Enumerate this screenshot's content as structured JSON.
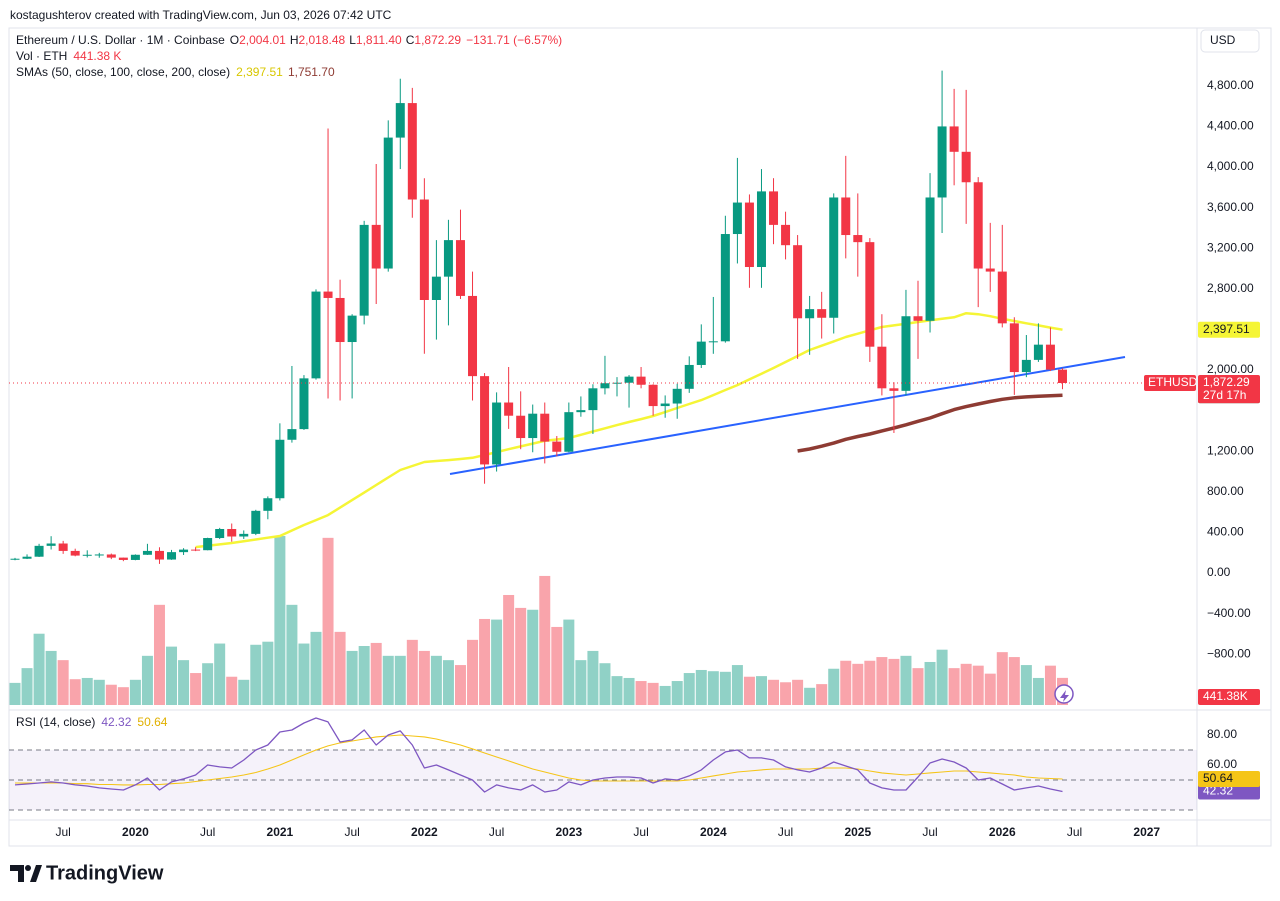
{
  "watermark": "kostagushterov created with TradingView.com, Jun 03, 2026 07:42 UTC",
  "currency": "USD",
  "brand": "TradingView",
  "chart_data": [
    {
      "type": "candlestick",
      "title": "Ethereum / U.S. Dollar · 1M · Coinbase",
      "legend": [
        {
          "key": "O",
          "value": "2,004.01"
        },
        {
          "key": "H",
          "value": "2,018.48"
        },
        {
          "key": "L",
          "value": "1,811.40"
        },
        {
          "key": "C",
          "value": "1,872.29"
        }
      ],
      "change_label": "−131.71 (−6.57%)",
      "symbol": "ETHUSD",
      "close_label": "1,872.29",
      "countdown": "27d 17h",
      "indicator_title": "SMAs (50, close, 100, close, 200, close)",
      "up_color": "#089981",
      "down_color": "#f23645",
      "categories": [
        null,
        null,
        null,
        null,
        "Jul",
        null,
        null,
        null,
        null,
        null,
        "2020",
        null,
        null,
        null,
        null,
        null,
        "Jul",
        null,
        null,
        null,
        null,
        null,
        "2021",
        null,
        null,
        null,
        null,
        null,
        "Jul",
        null,
        null,
        null,
        null,
        null,
        "2022",
        null,
        null,
        null,
        null,
        null,
        "Jul",
        null,
        null,
        null,
        null,
        null,
        "2023",
        null,
        null,
        null,
        null,
        null,
        "Jul",
        null,
        null,
        null,
        null,
        null,
        "2024",
        null,
        null,
        null,
        null,
        null,
        "Jul",
        null,
        null,
        null,
        null,
        null,
        "2025",
        null,
        null,
        null,
        null,
        null,
        "Jul",
        null,
        null,
        null,
        null,
        null,
        "2026",
        null,
        null,
        null,
        null,
        null
      ],
      "open": [
        136,
        141,
        161,
        268,
        291,
        218,
        172,
        180,
        183,
        152,
        129,
        180,
        218,
        133,
        206,
        231,
        225,
        345,
        434,
        360,
        386,
        613,
        737,
        1313,
        1418,
        1918,
        2773,
        2710,
        2276,
        2536,
        3430,
        3000,
        4290,
        4630,
        3680,
        2690,
        2920,
        3280,
        2730,
        1940,
        1070,
        1680,
        1550,
        1330,
        1570,
        1295,
        1195,
        1585,
        1605,
        1820,
        1870,
        1875,
        1935,
        1855,
        1645,
        1670,
        1815,
        2050,
        2280,
        2283,
        3340,
        3650,
        3015,
        3760,
        3430,
        3230,
        2510,
        2600,
        2515,
        3700,
        3330,
        3260,
        2230,
        1820,
        1795,
        2530,
        2485,
        3700,
        4400,
        4150,
        3850,
        3000,
        2970,
        2460,
        1980,
        2100,
        2250,
        2004.01
      ],
      "high": [
        149,
        184,
        288,
        363,
        317,
        240,
        224,
        199,
        192,
        153,
        184,
        288,
        254,
        228,
        245,
        255,
        348,
        445,
        488,
        420,
        623,
        755,
        1475,
        2040,
        1950,
        2795,
        4380,
        2890,
        2550,
        3470,
        4030,
        4460,
        4870,
        4780,
        3890,
        3280,
        3480,
        3580,
        2970,
        1970,
        1780,
        2030,
        1790,
        1660,
        1680,
        1350,
        1680,
        1740,
        1860,
        2140,
        1930,
        1950,
        2030,
        1860,
        1750,
        1865,
        2135,
        2450,
        2720,
        3520,
        4090,
        3730,
        3980,
        3890,
        3560,
        3330,
        2730,
        2770,
        3740,
        4110,
        3740,
        3300,
        2550,
        1880,
        2790,
        2880,
        3940,
        4950,
        4770,
        4760,
        3900,
        3450,
        3430,
        2520,
        2345,
        2460,
        2420,
        2018.48
      ],
      "low": [
        126,
        138,
        158,
        232,
        189,
        165,
        153,
        151,
        137,
        117,
        126,
        178,
        90,
        130,
        178,
        216,
        224,
        335,
        309,
        336,
        374,
        530,
        715,
        1285,
        1410,
        1905,
        1720,
        1700,
        1720,
        2450,
        2650,
        2970,
        3980,
        3500,
        2160,
        2300,
        2440,
        2700,
        1700,
        880,
        1000,
        1420,
        1220,
        1190,
        1080,
        1150,
        1190,
        1540,
        1370,
        1760,
        1740,
        1630,
        1820,
        1550,
        1530,
        1520,
        1775,
        2020,
        2160,
        2270,
        3050,
        2810,
        2810,
        3240,
        3090,
        2110,
        2150,
        2310,
        2360,
        3100,
        2920,
        2080,
        1750,
        1380,
        1750,
        2110,
        2370,
        3350,
        3820,
        3440,
        2620,
        2770,
        2420,
        1755,
        1930,
        2080,
        1990,
        1811.4
      ],
      "close": [
        141,
        161,
        268,
        291,
        218,
        172,
        180,
        183,
        152,
        129,
        180,
        218,
        133,
        206,
        231,
        225,
        345,
        434,
        360,
        386,
        613,
        737,
        1313,
        1418,
        1918,
        2773,
        2710,
        2276,
        2536,
        3430,
        3000,
        4290,
        4630,
        3680,
        2690,
        2920,
        3280,
        2730,
        1940,
        1070,
        1680,
        1550,
        1330,
        1570,
        1295,
        1195,
        1585,
        1605,
        1820,
        1870,
        1875,
        1935,
        1855,
        1645,
        1670,
        1815,
        2050,
        2280,
        2283,
        3340,
        3650,
        3015,
        3760,
        3430,
        3230,
        2510,
        2600,
        2515,
        3700,
        3330,
        3260,
        2230,
        1820,
        1795,
        2530,
        2485,
        3700,
        4400,
        4150,
        3850,
        3000,
        2970,
        2460,
        1980,
        2100,
        2250,
        2004.01,
        1872.29
      ],
      "series": [
        {
          "color": "#f5f536",
          "value_label": "2,397.51",
          "values": [
            null,
            null,
            null,
            null,
            null,
            null,
            null,
            null,
            null,
            null,
            null,
            null,
            null,
            null,
            null,
            256,
            269,
            282,
            296,
            313,
            330,
            348,
            365,
            419,
            473,
            522,
            571,
            645,
            719,
            793,
            867,
            941,
            1015,
            1055,
            1094,
            1104,
            1113,
            1124,
            1135,
            1163,
            1192,
            1220,
            1248,
            1275,
            1303,
            1316,
            1330,
            1362,
            1394,
            1426,
            1458,
            1488,
            1517,
            1547,
            1586,
            1626,
            1665,
            1704,
            1753,
            1803,
            1852,
            1908,
            1964,
            2020,
            2079,
            2138,
            2197,
            2240,
            2282,
            2325,
            2358,
            2391,
            2424,
            2440,
            2457,
            2473,
            2489,
            2505,
            2520,
            2560,
            2550,
            2530,
            2505,
            2483,
            2460,
            2440,
            2418,
            2397.51
          ]
        },
        {
          "color": "#8e3b33",
          "value_label": "1,751.70",
          "values": [
            null,
            null,
            null,
            null,
            null,
            null,
            null,
            null,
            null,
            null,
            null,
            null,
            null,
            null,
            null,
            null,
            null,
            null,
            null,
            null,
            null,
            null,
            null,
            null,
            null,
            null,
            null,
            null,
            null,
            null,
            null,
            null,
            null,
            null,
            null,
            null,
            null,
            null,
            null,
            null,
            null,
            null,
            null,
            null,
            null,
            null,
            null,
            null,
            null,
            null,
            null,
            null,
            null,
            null,
            null,
            null,
            null,
            null,
            null,
            null,
            null,
            null,
            null,
            null,
            null,
            1202,
            1222,
            1250,
            1280,
            1318,
            1345,
            1370,
            1400,
            1429,
            1460,
            1495,
            1527,
            1570,
            1610,
            1640,
            1665,
            1690,
            1712,
            1726,
            1735,
            1742,
            1747,
            1751.7
          ]
        }
      ],
      "ylim": [
        -1300,
        5350
      ],
      "yticks": [
        {
          "value": 4800,
          "label": "4,800.00"
        },
        {
          "value": 4400,
          "label": "4,400.00"
        },
        {
          "value": 4000,
          "label": "4,000.00"
        },
        {
          "value": 3600,
          "label": "3,600.00"
        },
        {
          "value": 3200,
          "label": "3,200.00"
        },
        {
          "value": 2800,
          "label": "2,800.00"
        },
        {
          "value": 2000,
          "label": "2,000.00"
        },
        {
          "value": 1200,
          "label": "1,200.00"
        },
        {
          "value": 800,
          "label": "800.00"
        },
        {
          "value": 400,
          "label": "400.00"
        },
        {
          "value": 0,
          "label": "0.00"
        },
        {
          "value": -400,
          "label": "−400.00"
        },
        {
          "value": -800,
          "label": "−800.00"
        }
      ],
      "after_ticks": [
        "Jul",
        "2027"
      ]
    },
    {
      "type": "bar",
      "title": "Vol · ETH",
      "legend_value": "441.38 K",
      "value_label": "441.38K",
      "up_color": "#089981",
      "down_color": "#f23645",
      "values": [
        360,
        600,
        1160,
        880,
        730,
        420,
        440,
        410,
        330,
        290,
        410,
        800,
        1630,
        950,
        730,
        520,
        680,
        1000,
        460,
        410,
        980,
        1030,
        2750,
        1630,
        1000,
        1190,
        2720,
        1190,
        880,
        960,
        1010,
        800,
        800,
        1060,
        880,
        800,
        730,
        650,
        1060,
        1400,
        1390,
        1790,
        1580,
        1550,
        2100,
        1270,
        1390,
        730,
        880,
        680,
        470,
        440,
        390,
        360,
        310,
        390,
        520,
        570,
        550,
        540,
        650,
        460,
        470,
        410,
        370,
        410,
        280,
        340,
        590,
        720,
        670,
        720,
        780,
        750,
        800,
        600,
        700,
        900,
        600,
        670,
        640,
        510,
        860,
        780,
        650,
        440,
        640,
        441.38
      ]
    },
    {
      "type": "line",
      "title": "RSI (14, close)",
      "ylim": [
        23.3,
        93.3
      ],
      "yticks": [
        {
          "value": 80,
          "label": "80.00"
        },
        {
          "value": 60,
          "label": "60.00"
        }
      ],
      "levels": [
        70,
        50,
        30
      ],
      "series": [
        {
          "color": "#7e57c2",
          "value_label": "42.32",
          "values": [
            46.7,
            47.3,
            48,
            48.7,
            48,
            46.7,
            46,
            44.7,
            44,
            43.3,
            46.7,
            51.3,
            43.3,
            48.7,
            50.7,
            53.3,
            60,
            58.7,
            58,
            63.3,
            70,
            73.3,
            82,
            83.3,
            88,
            91.3,
            88.7,
            75.3,
            76.7,
            83.3,
            73.3,
            80,
            82.7,
            73.3,
            58,
            60,
            56.7,
            53.3,
            50,
            42,
            46.7,
            44.7,
            43.3,
            46.7,
            42,
            43.3,
            48.7,
            46.7,
            50,
            51.3,
            52,
            52,
            51.3,
            48,
            50.7,
            50,
            52.7,
            56.7,
            63.3,
            68.7,
            70,
            64.7,
            64.7,
            63.3,
            58.7,
            56.7,
            55.3,
            58,
            62,
            59.3,
            56.7,
            48,
            44.7,
            43.3,
            43.3,
            52,
            61.3,
            64,
            62,
            58,
            50,
            51.3,
            47.3,
            43.3,
            44.7,
            46,
            44,
            42.32
          ]
        },
        {
          "color": "#f5c518",
          "value_label": "50.64",
          "values": [
            48,
            48,
            48,
            48,
            48,
            47.5,
            47.5,
            47,
            47,
            46.7,
            46.7,
            47,
            47,
            47.5,
            48,
            49,
            50,
            51,
            52,
            53.3,
            55,
            57.3,
            60,
            63.3,
            66.7,
            70,
            72.7,
            74.7,
            76,
            77.3,
            78.7,
            79.3,
            80,
            79.3,
            78.7,
            77.3,
            75.3,
            73.3,
            70.7,
            68,
            65.3,
            62.7,
            60,
            57.3,
            55.3,
            53.3,
            51.3,
            50,
            49.3,
            49.3,
            49.3,
            49.3,
            49.3,
            49.3,
            49.3,
            49.3,
            50,
            51.3,
            52.7,
            54,
            55.3,
            56,
            56.7,
            57.3,
            57.3,
            57.3,
            57.3,
            58,
            58,
            58,
            57.3,
            56,
            54.7,
            54,
            53.3,
            54,
            54.7,
            55.3,
            56,
            56,
            55.3,
            54.7,
            54,
            53.3,
            52,
            51.3,
            51,
            50.64
          ]
        }
      ]
    }
  ]
}
